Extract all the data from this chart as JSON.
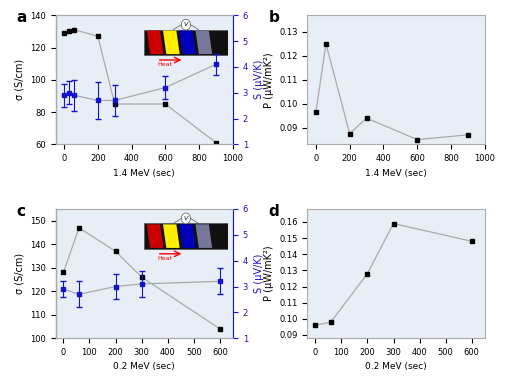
{
  "panel_a": {
    "sigma_x": [
      0,
      30,
      60,
      200,
      300,
      600,
      900
    ],
    "sigma_y": [
      129,
      130,
      131,
      127,
      85,
      85,
      61
    ],
    "S_x": [
      0,
      30,
      60,
      200,
      300,
      600,
      900
    ],
    "S_y": [
      2.9,
      3.0,
      2.9,
      2.7,
      2.7,
      3.2,
      4.1
    ],
    "S_yerr": [
      0.45,
      0.45,
      0.6,
      0.7,
      0.6,
      0.45,
      0.4
    ],
    "xlabel": "1.4 MeV (sec)",
    "ylabel_left": "σ (S/cm)",
    "ylabel_right": "S (μV/K)",
    "ylim_left": [
      60,
      140
    ],
    "ylim_right": [
      1,
      6
    ],
    "yticks_left": [
      60,
      80,
      100,
      120,
      140
    ],
    "yticks_right": [
      1,
      2,
      3,
      4,
      5,
      6
    ],
    "xticks": [
      0,
      200,
      400,
      600,
      800,
      1000
    ],
    "xlim": [
      -50,
      1000
    ],
    "label": "a"
  },
  "panel_b": {
    "x": [
      0,
      60,
      200,
      300,
      600,
      900
    ],
    "y": [
      0.0965,
      0.125,
      0.0875,
      0.094,
      0.085,
      0.087
    ],
    "xlabel": "1.4 MeV (sec)",
    "ylabel": "P (μW/mK²)",
    "ylim": [
      0.083,
      0.137
    ],
    "yticks": [
      0.09,
      0.1,
      0.11,
      0.12,
      0.13
    ],
    "xticks": [
      0,
      200,
      400,
      600,
      800,
      1000
    ],
    "xlim": [
      -50,
      1000
    ],
    "label": "b"
  },
  "panel_c": {
    "sigma_x": [
      0,
      60,
      200,
      300,
      600
    ],
    "sigma_y": [
      128,
      147,
      137,
      126,
      104
    ],
    "S_x": [
      0,
      60,
      200,
      300,
      600
    ],
    "S_y": [
      2.9,
      2.7,
      3.0,
      3.1,
      3.2
    ],
    "S_yerr": [
      0.3,
      0.5,
      0.5,
      0.5,
      0.5
    ],
    "xlabel": "0.2 MeV (sec)",
    "ylabel_left": "σ (S/cm)",
    "ylabel_right": "S (μV/K)",
    "ylim_left": [
      100,
      155
    ],
    "ylim_right": [
      1,
      6
    ],
    "yticks_left": [
      100,
      110,
      120,
      130,
      140,
      150
    ],
    "yticks_right": [
      1,
      2,
      3,
      4,
      5,
      6
    ],
    "xticks": [
      0,
      100,
      200,
      300,
      400,
      500,
      600
    ],
    "xlim": [
      -30,
      650
    ],
    "label": "c"
  },
  "panel_d": {
    "x": [
      0,
      60,
      200,
      300,
      600
    ],
    "y": [
      0.096,
      0.098,
      0.128,
      0.159,
      0.148
    ],
    "xlabel": "0.2 MeV (sec)",
    "ylabel": "P (μW/mK²)",
    "ylim": [
      0.088,
      0.168
    ],
    "yticks": [
      0.09,
      0.1,
      0.11,
      0.12,
      0.13,
      0.14,
      0.15,
      0.16
    ],
    "xticks": [
      0,
      100,
      200,
      300,
      400,
      500,
      600
    ],
    "xlim": [
      -30,
      650
    ],
    "label": "d"
  },
  "sigma_color": "#000000",
  "S_color": "#1414cc",
  "line_color": "#aaaaaa",
  "marker_size": 3.5,
  "background_color": "#e8eef5",
  "fig_background": "#ffffff",
  "inset_stripes": [
    "#cc0000",
    "#ffee00",
    "#0000bb",
    "#777799"
  ],
  "inset_bg": "#111111"
}
